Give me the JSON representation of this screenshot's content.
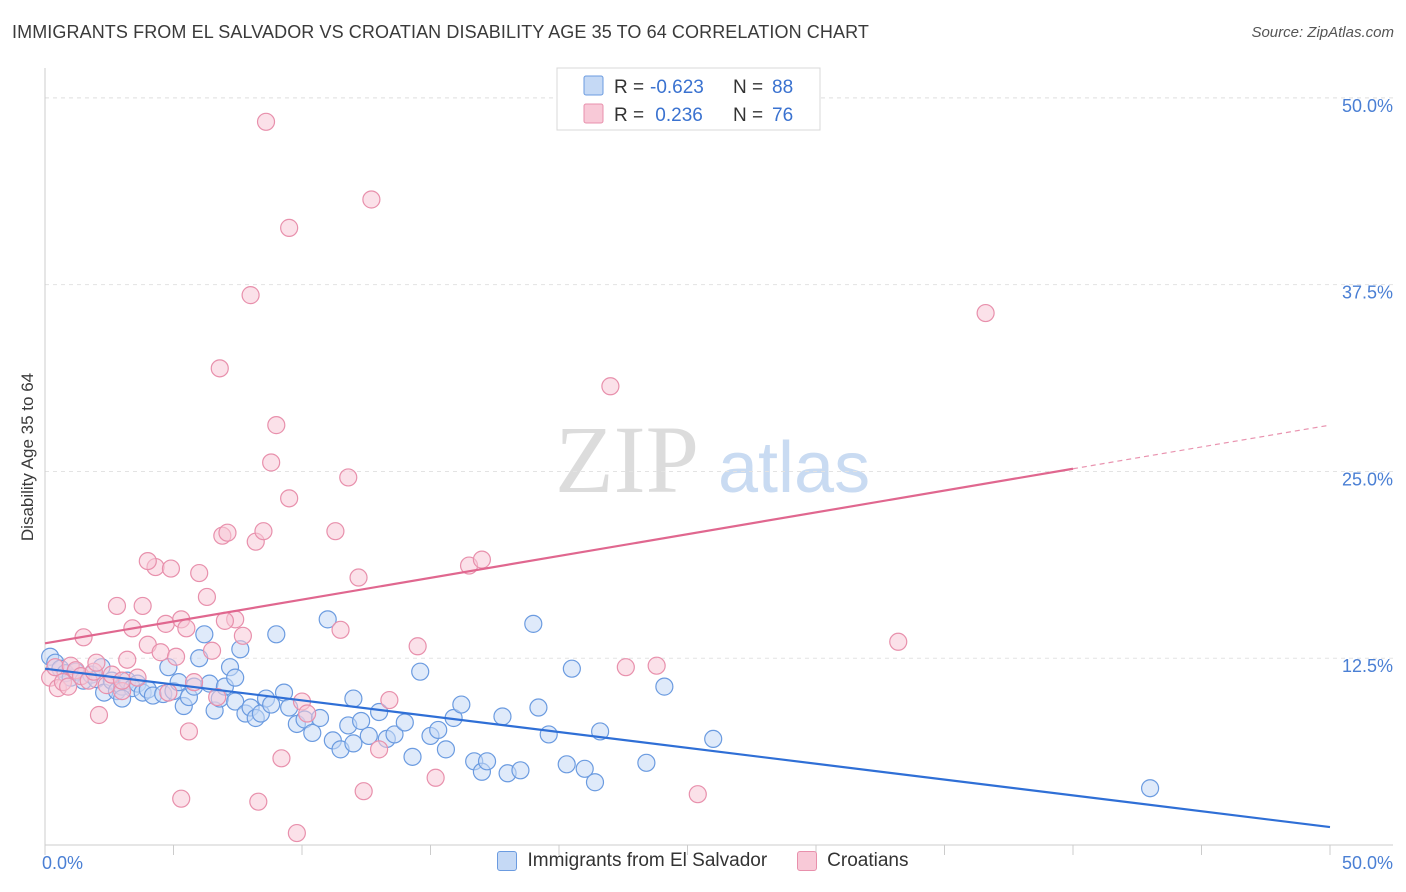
{
  "title": "IMMIGRANTS FROM EL SALVADOR VS CROATIAN DISABILITY AGE 35 TO 64 CORRELATION CHART",
  "source": "Source: ZipAtlas.com",
  "watermark": {
    "zip": "ZIP",
    "atlas": "atlas"
  },
  "legend_box": {
    "rows": [
      {
        "r_label": "R =",
        "r_value": "-0.623",
        "n_label": "N =",
        "n_value": "88"
      },
      {
        "r_label": "R =",
        "r_value": " 0.236",
        "n_label": "N =",
        "n_value": "76"
      }
    ]
  },
  "chart_data": {
    "type": "scatter",
    "title": "IMMIGRANTS FROM EL SALVADOR VS CROATIAN DISABILITY AGE 35 TO 64 CORRELATION CHART",
    "xlabel": "",
    "ylabel": "Disability Age 35 to 64",
    "xlim": [
      0,
      50
    ],
    "ylim": [
      0,
      52
    ],
    "x_tick_labels": [
      "0.0%",
      "50.0%"
    ],
    "y_ticks": [
      12.5,
      25.0,
      37.5,
      50.0
    ],
    "y_tick_labels": [
      "12.5%",
      "25.0%",
      "37.5%",
      "50.0%"
    ],
    "grid": "horizontal dashed",
    "legend_position": "bottom-center",
    "series": [
      {
        "name": "Immigrants from El Salvador",
        "color": "#6b9be0",
        "fill": "#c5d9f5",
        "R": -0.623,
        "N": 88,
        "trend": {
          "x0": 0,
          "y0": 11.8,
          "x1": 50,
          "y1": 1.2,
          "solid_to": 50
        },
        "points": [
          [
            0.2,
            12.6
          ],
          [
            0.4,
            12.2
          ],
          [
            0.6,
            11.8
          ],
          [
            0.8,
            11.5
          ],
          [
            1.0,
            11.2
          ],
          [
            1.2,
            11.6
          ],
          [
            1.5,
            11.0
          ],
          [
            1.8,
            11.4
          ],
          [
            2.0,
            11.1
          ],
          [
            2.2,
            11.9
          ],
          [
            2.3,
            10.2
          ],
          [
            2.6,
            11.0
          ],
          [
            2.8,
            10.3
          ],
          [
            3.0,
            10.6
          ],
          [
            3.2,
            11.0
          ],
          [
            3.4,
            10.5
          ],
          [
            3.6,
            10.8
          ],
          [
            3.8,
            10.2
          ],
          [
            4.0,
            10.4
          ],
          [
            4.2,
            10.0
          ],
          [
            4.6,
            10.1
          ],
          [
            4.8,
            11.9
          ],
          [
            5.0,
            10.3
          ],
          [
            5.2,
            10.9
          ],
          [
            5.4,
            9.3
          ],
          [
            5.6,
            9.9
          ],
          [
            5.8,
            10.6
          ],
          [
            6.0,
            12.5
          ],
          [
            6.2,
            14.1
          ],
          [
            6.4,
            10.8
          ],
          [
            6.6,
            9.0
          ],
          [
            6.8,
            9.8
          ],
          [
            7.0,
            10.6
          ],
          [
            7.2,
            11.9
          ],
          [
            7.4,
            9.6
          ],
          [
            7.6,
            13.1
          ],
          [
            7.8,
            8.8
          ],
          [
            8.0,
            9.2
          ],
          [
            8.2,
            8.5
          ],
          [
            8.4,
            8.8
          ],
          [
            8.6,
            9.8
          ],
          [
            8.8,
            9.4
          ],
          [
            9.0,
            14.1
          ],
          [
            9.3,
            10.2
          ],
          [
            9.5,
            9.2
          ],
          [
            9.8,
            8.1
          ],
          [
            10.1,
            8.4
          ],
          [
            10.4,
            7.5
          ],
          [
            10.7,
            8.5
          ],
          [
            11.0,
            15.1
          ],
          [
            11.2,
            7.0
          ],
          [
            11.5,
            6.4
          ],
          [
            11.8,
            8.0
          ],
          [
            12.0,
            9.8
          ],
          [
            12.3,
            8.3
          ],
          [
            12.6,
            7.3
          ],
          [
            13.0,
            8.9
          ],
          [
            13.3,
            7.1
          ],
          [
            13.6,
            7.4
          ],
          [
            14.0,
            8.2
          ],
          [
            14.3,
            5.9
          ],
          [
            14.6,
            11.6
          ],
          [
            15.0,
            7.3
          ],
          [
            15.3,
            7.7
          ],
          [
            15.6,
            6.4
          ],
          [
            15.9,
            8.5
          ],
          [
            16.2,
            9.4
          ],
          [
            16.7,
            5.6
          ],
          [
            17.0,
            4.9
          ],
          [
            17.2,
            5.6
          ],
          [
            17.8,
            8.6
          ],
          [
            18.0,
            4.8
          ],
          [
            18.5,
            5.0
          ],
          [
            19.0,
            14.8
          ],
          [
            19.2,
            9.2
          ],
          [
            19.6,
            7.4
          ],
          [
            20.3,
            5.4
          ],
          [
            20.5,
            11.8
          ],
          [
            21.0,
            5.1
          ],
          [
            21.4,
            4.2
          ],
          [
            21.6,
            7.6
          ],
          [
            23.4,
            5.5
          ],
          [
            24.1,
            10.6
          ],
          [
            26.0,
            7.1
          ],
          [
            43.0,
            3.8
          ],
          [
            7.4,
            11.2
          ],
          [
            3.0,
            9.8
          ],
          [
            12.0,
            6.8
          ]
        ]
      },
      {
        "name": "Croatians",
        "color": "#e890ac",
        "fill": "#f8c9d7",
        "R": 0.236,
        "N": 76,
        "trend": {
          "x0": 0,
          "y0": 13.5,
          "x1": 50,
          "y1": 28.1,
          "solid_to": 40
        },
        "points": [
          [
            0.2,
            11.2
          ],
          [
            0.4,
            11.9
          ],
          [
            0.5,
            10.5
          ],
          [
            0.7,
            10.9
          ],
          [
            0.9,
            10.6
          ],
          [
            1.0,
            12.0
          ],
          [
            1.2,
            11.7
          ],
          [
            1.4,
            11.3
          ],
          [
            1.5,
            13.9
          ],
          [
            1.7,
            11.0
          ],
          [
            1.9,
            11.6
          ],
          [
            2.1,
            8.7
          ],
          [
            2.4,
            10.7
          ],
          [
            2.6,
            11.4
          ],
          [
            2.8,
            16.0
          ],
          [
            3.0,
            10.3
          ],
          [
            3.2,
            12.4
          ],
          [
            3.4,
            14.5
          ],
          [
            3.6,
            11.2
          ],
          [
            3.8,
            16.0
          ],
          [
            4.0,
            13.4
          ],
          [
            4.3,
            18.6
          ],
          [
            4.5,
            12.9
          ],
          [
            4.7,
            14.8
          ],
          [
            4.9,
            18.5
          ],
          [
            5.1,
            12.6
          ],
          [
            5.3,
            15.1
          ],
          [
            5.5,
            14.5
          ],
          [
            5.6,
            7.6
          ],
          [
            5.8,
            10.9
          ],
          [
            6.0,
            18.2
          ],
          [
            6.3,
            16.6
          ],
          [
            6.5,
            13.0
          ],
          [
            6.7,
            9.9
          ],
          [
            6.9,
            20.7
          ],
          [
            7.1,
            20.9
          ],
          [
            7.4,
            15.1
          ],
          [
            7.7,
            14.0
          ],
          [
            8.0,
            36.8
          ],
          [
            8.2,
            20.3
          ],
          [
            8.6,
            48.4
          ],
          [
            8.8,
            25.6
          ],
          [
            9.0,
            28.1
          ],
          [
            9.2,
            5.8
          ],
          [
            9.5,
            23.2
          ],
          [
            9.8,
            0.8
          ],
          [
            10.0,
            9.6
          ],
          [
            10.2,
            8.8
          ],
          [
            11.3,
            21.0
          ],
          [
            11.5,
            14.4
          ],
          [
            11.8,
            24.6
          ],
          [
            12.2,
            17.9
          ],
          [
            12.7,
            43.2
          ],
          [
            13.0,
            6.4
          ],
          [
            13.4,
            9.7
          ],
          [
            14.5,
            13.3
          ],
          [
            15.2,
            4.5
          ],
          [
            16.5,
            18.7
          ],
          [
            17.0,
            19.1
          ],
          [
            22.0,
            30.7
          ],
          [
            22.6,
            11.9
          ],
          [
            23.8,
            12.0
          ],
          [
            25.4,
            3.4
          ],
          [
            33.2,
            13.6
          ],
          [
            36.6,
            35.6
          ],
          [
            6.8,
            31.9
          ],
          [
            9.5,
            41.3
          ],
          [
            8.5,
            21.0
          ],
          [
            5.3,
            3.1
          ],
          [
            3.0,
            11.0
          ],
          [
            2.0,
            12.2
          ],
          [
            4.8,
            10.2
          ],
          [
            7.0,
            15.0
          ],
          [
            8.3,
            2.9
          ],
          [
            12.4,
            3.6
          ],
          [
            4.0,
            19.0
          ]
        ]
      }
    ]
  }
}
